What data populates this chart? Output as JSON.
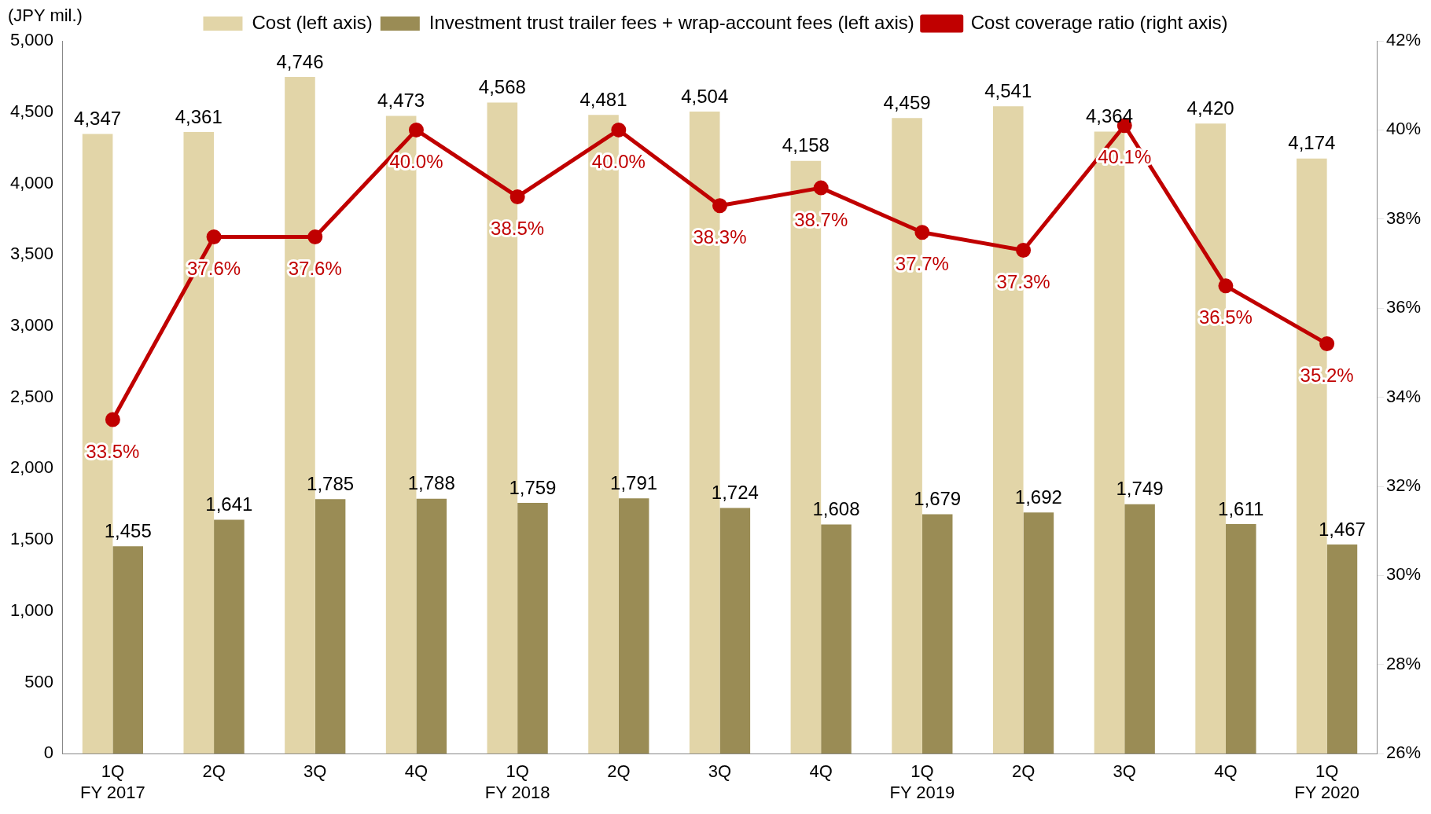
{
  "chart_data": {
    "type": "bar",
    "ylabel": "(JPY mil.)",
    "categories": [
      "1Q\nFY 2017",
      "2Q",
      "3Q",
      "4Q",
      "1Q\nFY 2018",
      "2Q",
      "3Q",
      "4Q",
      "1Q\nFY 2019",
      "2Q",
      "3Q",
      "4Q",
      "1Q\nFY 2020"
    ],
    "series": [
      {
        "name": "Cost (left axis)",
        "color": "#e2d5a8",
        "values": [
          4347,
          4361,
          4746,
          4473,
          4568,
          4481,
          4504,
          4158,
          4459,
          4541,
          4364,
          4420,
          4174
        ],
        "value_labels": [
          "4,347",
          "4,361",
          "4,746",
          "4,473",
          "4,568",
          "4,481",
          "4,504",
          "4,158",
          "4,459",
          "4,541",
          "4,364",
          "4,420",
          "4,174"
        ]
      },
      {
        "name": "Investment trust trailer fees + wrap-account fees (left axis)",
        "color": "#9a8c55",
        "values": [
          1455,
          1641,
          1785,
          1788,
          1759,
          1791,
          1724,
          1608,
          1679,
          1692,
          1749,
          1611,
          1467
        ],
        "value_labels": [
          "1,455",
          "1,641",
          "1,785",
          "1,788",
          "1,759",
          "1,791",
          "1,724",
          "1,608",
          "1,679",
          "1,692",
          "1,749",
          "1,611",
          "1,467"
        ]
      },
      {
        "name": "Cost coverage ratio (right axis)",
        "type": "line",
        "axis": "y2",
        "color": "#c00000",
        "values": [
          33.5,
          37.6,
          37.6,
          40.0,
          38.5,
          40.0,
          38.3,
          38.7,
          37.7,
          37.3,
          40.1,
          36.5,
          35.2
        ],
        "value_labels": [
          "33.5%",
          "37.6%",
          "37.6%",
          "40.0%",
          "38.5%",
          "40.0%",
          "38.3%",
          "38.7%",
          "37.7%",
          "37.3%",
          "40.1%",
          "36.5%",
          "35.2%"
        ]
      }
    ],
    "ylim": [
      0,
      5000
    ],
    "yticks": [
      {
        "value": 0,
        "label": "0"
      },
      {
        "value": 500,
        "label": "500"
      },
      {
        "value": 1000,
        "label": "1,000"
      },
      {
        "value": 1500,
        "label": "1,500"
      },
      {
        "value": 2000,
        "label": "2,000"
      },
      {
        "value": 2500,
        "label": "2,500"
      },
      {
        "value": 3000,
        "label": "3,000"
      },
      {
        "value": 3500,
        "label": "3,500"
      },
      {
        "value": 4000,
        "label": "4,000"
      },
      {
        "value": 4500,
        "label": "4,500"
      },
      {
        "value": 5000,
        "label": "5,000"
      }
    ],
    "y2lim": [
      26,
      42
    ],
    "y2ticks": [
      {
        "value": 26,
        "label": "26%"
      },
      {
        "value": 28,
        "label": "28%"
      },
      {
        "value": 30,
        "label": "30%"
      },
      {
        "value": 32,
        "label": "32%"
      },
      {
        "value": 34,
        "label": "34%"
      },
      {
        "value": 36,
        "label": "36%"
      },
      {
        "value": 38,
        "label": "38%"
      },
      {
        "value": 40,
        "label": "40%"
      },
      {
        "value": 42,
        "label": "42%"
      }
    ],
    "legend": "top",
    "marker": "circle",
    "line_style": "solid",
    "grid": false
  }
}
